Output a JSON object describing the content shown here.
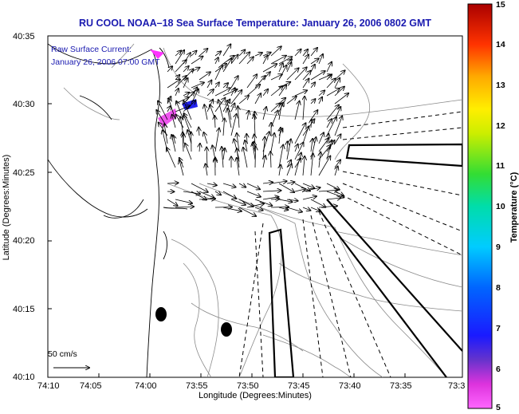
{
  "title": "RU COOL  NOAA–18  Sea Surface Temperature:  January 26, 2006 0802 GMT",
  "xlabel": "Longitude (Degrees:Minutes)",
  "ylabel": "Latitude (Degrees:Minutes)",
  "legend": {
    "line1": "Raw Surface Current:",
    "line2": "January 26, 2006 07:00 GMT"
  },
  "scale_label": "50 cm/s",
  "colorbar": {
    "title": "Temperature (°C)",
    "ticks": [
      "5",
      "6",
      "7",
      "8",
      "9",
      "10",
      "11",
      "12",
      "13",
      "14",
      "15"
    ],
    "range": [
      5,
      15
    ]
  },
  "x_ticks": [
    "74:10",
    "74:05",
    "74:00",
    "73:55",
    "73:50",
    "73:45",
    "73:40",
    "73:35",
    "73:3"
  ],
  "y_ticks": [
    "40:35",
    "40:30",
    "40:25",
    "40:20",
    "40:15",
    "40:10"
  ],
  "colors": {
    "title": "#1a1ab0",
    "coast": "#000000",
    "contour": "#777777"
  }
}
